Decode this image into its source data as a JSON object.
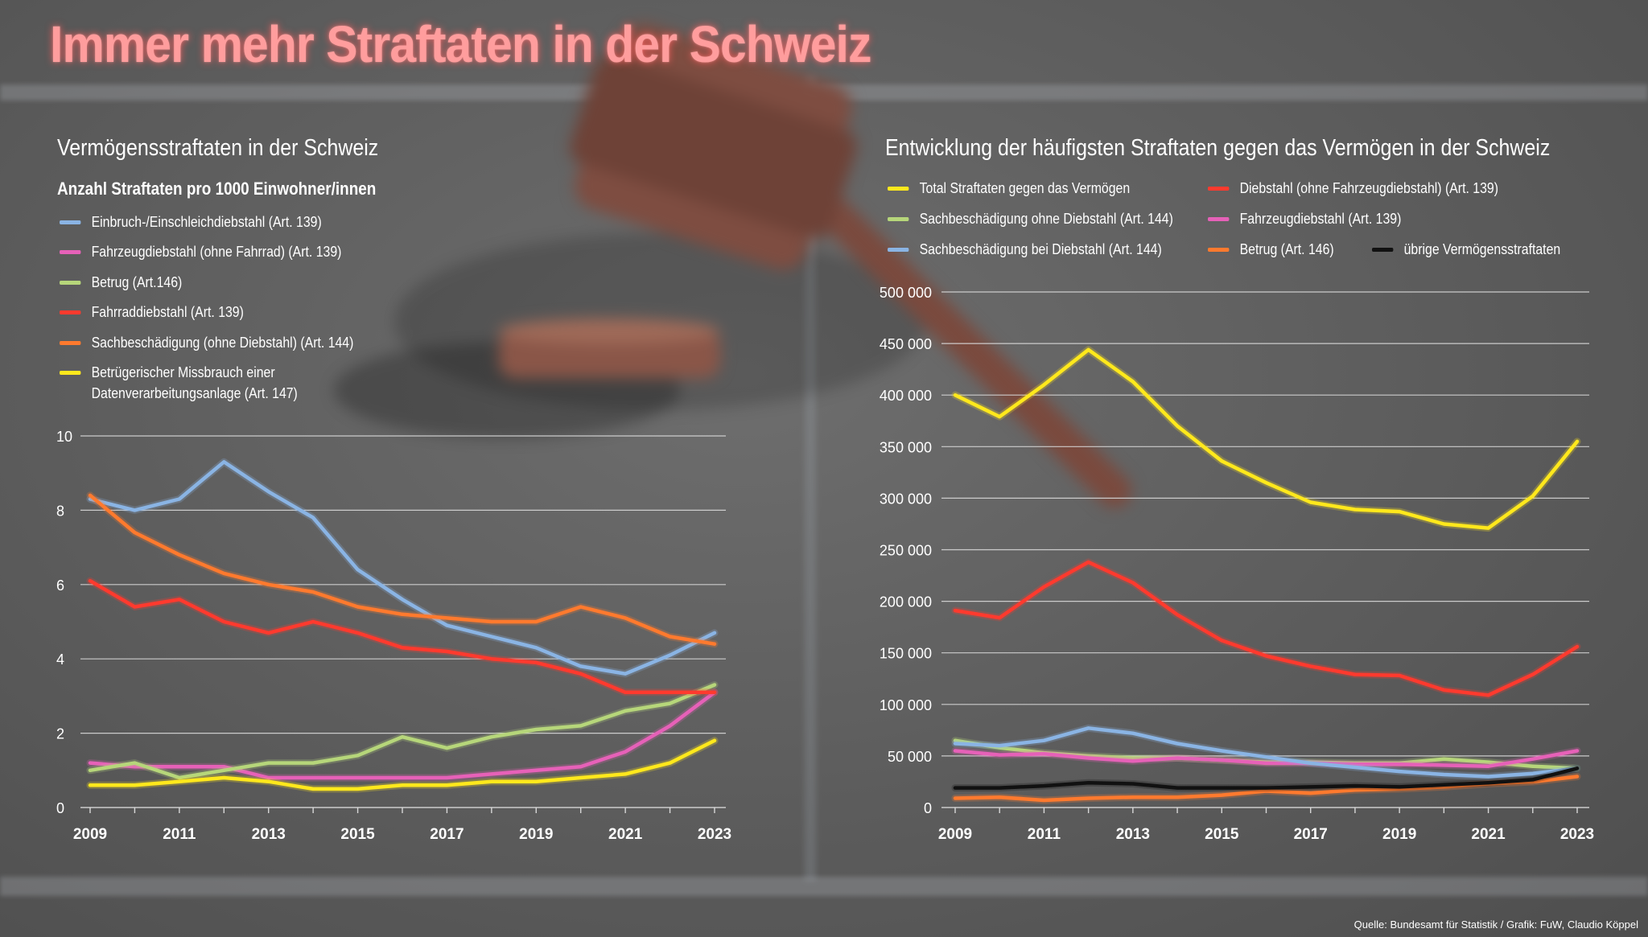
{
  "page": {
    "title": "Immer mehr Straftaten in der Schweiz",
    "source": "Quelle: Bundesamt für Statistik / Grafik: FuW, Claudio Köppel"
  },
  "colors": {
    "title": "#ff9d9d",
    "blue": "#8ab4e4",
    "pink": "#e661b8",
    "green": "#b6d67a",
    "red": "#ff3a2e",
    "orange": "#ff7a2e",
    "yellow": "#ffe81c",
    "black": "#111111",
    "grid": "#d8d8d8"
  },
  "chart_data": [
    {
      "type": "line",
      "title": "Vermögensstraftaten in der Schweiz",
      "subtitle": "Anzahl Straftaten pro 1000 Einwohner/innen",
      "xlabel": "",
      "ylabel": "",
      "x": [
        2009,
        2010,
        2011,
        2012,
        2013,
        2014,
        2015,
        2016,
        2017,
        2018,
        2019,
        2020,
        2021,
        2022,
        2023
      ],
      "xticks": [
        "2009",
        "2011",
        "2013",
        "2015",
        "2017",
        "2019",
        "2021",
        "2023"
      ],
      "yticks": [
        "0",
        "2",
        "4",
        "6",
        "8",
        "10"
      ],
      "ylim": [
        0,
        10
      ],
      "grid": true,
      "legend_position": "top-left",
      "series": [
        {
          "name": "Einbruch-/Einschleichdiebstahl (Art. 139)",
          "color": "#8ab4e4",
          "values": [
            8.3,
            8.0,
            8.3,
            9.3,
            8.5,
            7.8,
            6.4,
            5.6,
            4.9,
            4.6,
            4.3,
            3.8,
            3.6,
            4.1,
            4.7
          ]
        },
        {
          "name": "Fahrzeugdiebstahl (ohne Fahrrad) (Art. 139)",
          "color": "#e661b8",
          "values": [
            1.2,
            1.1,
            1.1,
            1.1,
            0.8,
            0.8,
            0.8,
            0.8,
            0.8,
            0.9,
            1.0,
            1.1,
            1.5,
            2.2,
            3.1
          ]
        },
        {
          "name": "Betrug (Art.146)",
          "color": "#b6d67a",
          "values": [
            1.0,
            1.2,
            0.8,
            1.0,
            1.2,
            1.2,
            1.4,
            1.9,
            1.6,
            1.9,
            2.1,
            2.2,
            2.6,
            2.8,
            3.3
          ]
        },
        {
          "name": "Fahrraddiebstahl (Art. 139)",
          "color": "#ff3a2e",
          "values": [
            6.1,
            5.4,
            5.6,
            5.0,
            4.7,
            5.0,
            4.7,
            4.3,
            4.2,
            4.0,
            3.9,
            3.6,
            3.1,
            3.1,
            3.1
          ]
        },
        {
          "name": "Sachbeschädigung (ohne Diebstahl) (Art. 144)",
          "color": "#ff7a2e",
          "values": [
            8.4,
            7.4,
            6.8,
            6.3,
            6.0,
            5.8,
            5.4,
            5.2,
            5.1,
            5.0,
            5.0,
            5.4,
            5.1,
            4.6,
            4.4
          ]
        },
        {
          "name": "Betrügerischer Missbrauch einer Datenverarbeitungsanlage (Art. 147)",
          "color": "#ffe81c",
          "values": [
            0.6,
            0.6,
            0.7,
            0.8,
            0.7,
            0.5,
            0.5,
            0.6,
            0.6,
            0.7,
            0.7,
            0.8,
            0.9,
            1.2,
            1.8
          ]
        }
      ]
    },
    {
      "type": "line",
      "title": "Entwicklung der häufigsten Straftaten gegen das Vermögen in der Schweiz",
      "xlabel": "",
      "ylabel": "",
      "x": [
        2009,
        2010,
        2011,
        2012,
        2013,
        2014,
        2015,
        2016,
        2017,
        2018,
        2019,
        2020,
        2021,
        2022,
        2023
      ],
      "xticks": [
        "2009",
        "2011",
        "2013",
        "2015",
        "2017",
        "2019",
        "2021",
        "2023"
      ],
      "yticks": [
        "0",
        "50 000",
        "100 000",
        "150 000",
        "200 000",
        "250 000",
        "300 000",
        "350 000",
        "400 000",
        "450 000",
        "500 000"
      ],
      "ylim": [
        0,
        500000
      ],
      "grid": true,
      "legend_position": "top",
      "series": [
        {
          "name": "Total Straftaten gegen das Vermögen",
          "color": "#ffe81c",
          "values": [
            400000,
            379000,
            410000,
            444000,
            413000,
            370000,
            336000,
            315000,
            296000,
            289000,
            287000,
            275000,
            271000,
            302000,
            355000
          ]
        },
        {
          "name": "Diebstahl (ohne Fahrzeugdiebstahl) (Art. 139)",
          "color": "#ff3a2e",
          "values": [
            191000,
            184000,
            214000,
            238000,
            218000,
            187000,
            162000,
            147000,
            137000,
            129000,
            128000,
            114000,
            109000,
            129000,
            156000
          ]
        },
        {
          "name": "Sachbeschädigung ohne Diebstahl (Art. 144)",
          "color": "#b6d67a",
          "values": [
            65000,
            58000,
            53000,
            50000,
            48000,
            48000,
            46000,
            44000,
            44000,
            43000,
            43000,
            47000,
            44000,
            40000,
            38000
          ]
        },
        {
          "name": "Fahrzeugdiebstahl (Art. 139)",
          "color": "#e661b8",
          "values": [
            55000,
            51000,
            52000,
            48000,
            45000,
            48000,
            46000,
            43000,
            43000,
            42000,
            42000,
            41000,
            40000,
            47000,
            55000
          ]
        },
        {
          "name": "Sachbeschädigung bei Diebstahl (Art. 144)",
          "color": "#8ab4e4",
          "values": [
            62000,
            60000,
            65000,
            77000,
            72000,
            62000,
            55000,
            49000,
            43000,
            39000,
            35000,
            32000,
            30000,
            33000,
            38000
          ]
        },
        {
          "name": "Betrug (Art. 146)",
          "color": "#ff7a2e",
          "values": [
            9000,
            10000,
            7000,
            9000,
            10000,
            10000,
            12000,
            16000,
            14000,
            17000,
            18000,
            20000,
            23000,
            25000,
            30000
          ]
        },
        {
          "name": "übrige Vermögensstraftaten",
          "color": "#111111",
          "values": [
            19000,
            19000,
            21000,
            24000,
            23000,
            19000,
            19000,
            19000,
            20000,
            21000,
            20000,
            22000,
            24000,
            27000,
            38000
          ]
        }
      ]
    }
  ]
}
